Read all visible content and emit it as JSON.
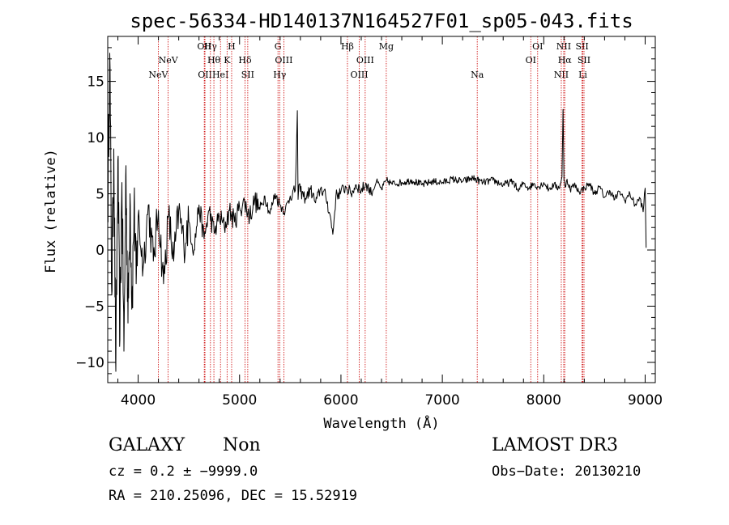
{
  "chart_data": {
    "type": "line",
    "title": "spec-56334-HD140137N164527F01_sp05-043.fits",
    "xlabel": "Wavelength (Å)",
    "ylabel": "Flux (relative)",
    "xlim": [
      3700,
      9100
    ],
    "ylim": [
      -11.8,
      19
    ],
    "x_ticks": [
      4000,
      5000,
      6000,
      7000,
      8000,
      9000
    ],
    "y_ticks": [
      -10,
      -5,
      0,
      5,
      10,
      15
    ],
    "x_tick_labels": [
      "4000",
      "5000",
      "6000",
      "7000",
      "8000",
      "9000"
    ],
    "y_tick_labels": [
      "−10",
      "−5",
      "0",
      "5",
      "10",
      "15"
    ],
    "series": [
      {
        "name": "flux",
        "x": [
          3700,
          3720,
          3740,
          3760,
          3780,
          3800,
          3820,
          3840,
          3860,
          3880,
          3900,
          3920,
          3940,
          3960,
          3980,
          4000,
          4050,
          4100,
          4150,
          4200,
          4250,
          4300,
          4350,
          4400,
          4450,
          4500,
          4550,
          4600,
          4650,
          4700,
          4750,
          4800,
          4850,
          4900,
          4950,
          5000,
          5050,
          5100,
          5150,
          5200,
          5250,
          5300,
          5350,
          5400,
          5450,
          5500,
          5550,
          5570,
          5577,
          5585,
          5600,
          5650,
          5700,
          5750,
          5800,
          5850,
          5890,
          5920,
          5950,
          6000,
          6050,
          6100,
          6150,
          6200,
          6250,
          6300,
          6350,
          6400,
          6450,
          6500,
          6600,
          6700,
          6800,
          6900,
          7000,
          7100,
          7200,
          7300,
          7400,
          7500,
          7600,
          7700,
          7750,
          7800,
          7850,
          7900,
          7950,
          8000,
          8050,
          8100,
          8150,
          8180,
          8190,
          8200,
          8210,
          8230,
          8260,
          8300,
          8350,
          8400,
          8450,
          8500,
          8550,
          8600,
          8650,
          8700,
          8750,
          8800,
          8850,
          8900,
          8950,
          8980,
          9000,
          9010
        ],
        "values": [
          3,
          17.5,
          -4,
          9,
          -10.8,
          8,
          -8,
          6,
          -9,
          7.5,
          -6.5,
          5,
          -5,
          4,
          -3,
          3,
          -1.5,
          4,
          -1,
          3.5,
          -3,
          3,
          -1,
          3.5,
          0.5,
          2.5,
          0,
          4,
          1,
          3.5,
          1.5,
          3,
          2,
          3.5,
          2.5,
          3.8,
          4.2,
          3,
          4.5,
          3.6,
          4.8,
          3.2,
          5,
          4,
          3.5,
          4.8,
          5.3,
          12.4,
          4.5,
          5.8,
          5.2,
          4.6,
          5.4,
          4.2,
          5.5,
          4.8,
          3.2,
          1.4,
          4.8,
          5.2,
          5.6,
          5,
          5.8,
          5.3,
          5.9,
          5,
          6.1,
          5.4,
          6.2,
          5.9,
          6,
          6.2,
          5.8,
          6.1,
          6,
          6.3,
          6.1,
          6.4,
          6,
          6.2,
          5.8,
          6.1,
          5.2,
          6,
          5.5,
          5.9,
          5.6,
          6,
          5.4,
          5.8,
          5.5,
          6.5,
          12.5,
          6.2,
          5.6,
          6.3,
          5.4,
          5.8,
          5.2,
          5.5,
          5.9,
          5,
          5.6,
          4.7,
          5.3,
          4.5,
          5.2,
          4.4,
          5,
          4,
          4.6,
          3.4,
          5.5,
          0.2
        ]
      }
    ],
    "lines": [
      {
        "label": "NeV",
        "x": 4199,
        "row": 3
      },
      {
        "label": "NeV",
        "x": 4296,
        "row": 2
      },
      {
        "label": "OII",
        "x": 4652,
        "row": 1
      },
      {
        "label": "OII",
        "x": 4659,
        "row": 3
      },
      {
        "label": "Hγ",
        "x": 4713,
        "row": 1
      },
      {
        "label": "Hθ",
        "x": 4747,
        "row": 2
      },
      {
        "label": "HeI",
        "x": 4812,
        "row": 3
      },
      {
        "label": "K",
        "x": 4877,
        "row": 2
      },
      {
        "label": "H",
        "x": 4922,
        "row": 1
      },
      {
        "label": "Hδ",
        "x": 5054,
        "row": 2
      },
      {
        "label": "SII",
        "x": 5081,
        "row": 3
      },
      {
        "label": "G",
        "x": 5379,
        "row": 1
      },
      {
        "label": "Hγ",
        "x": 5396,
        "row": 3
      },
      {
        "label": "OIII",
        "x": 5437,
        "row": 2
      },
      {
        "label": "Hβ",
        "x": 6064,
        "row": 1
      },
      {
        "label": "OIII",
        "x": 6181,
        "row": 3
      },
      {
        "label": "OIII",
        "x": 6239,
        "row": 2
      },
      {
        "label": "Mg",
        "x": 6447,
        "row": 1
      },
      {
        "label": "Na",
        "x": 7344,
        "row": 3
      },
      {
        "label": "OI",
        "x": 7872,
        "row": 2
      },
      {
        "label": "OI",
        "x": 7940,
        "row": 1
      },
      {
        "label": "NII",
        "x": 8173,
        "row": 3
      },
      {
        "label": "NII",
        "x": 8197,
        "row": 1
      },
      {
        "label": "Hα",
        "x": 8207,
        "row": 2
      },
      {
        "label": "SII",
        "x": 8378,
        "row": 1
      },
      {
        "label": "Li",
        "x": 8385,
        "row": 3
      },
      {
        "label": "SII",
        "x": 8397,
        "row": 2
      }
    ]
  },
  "info": {
    "object_class": "GALAXY",
    "subclass": "Non",
    "survey": "LAMOST DR3",
    "cz": "cz = 0.2 ± −9999.0",
    "obs_date": "Obs−Date: 20130210",
    "coords": "RA = 210.25096, DEC =  15.52919"
  }
}
